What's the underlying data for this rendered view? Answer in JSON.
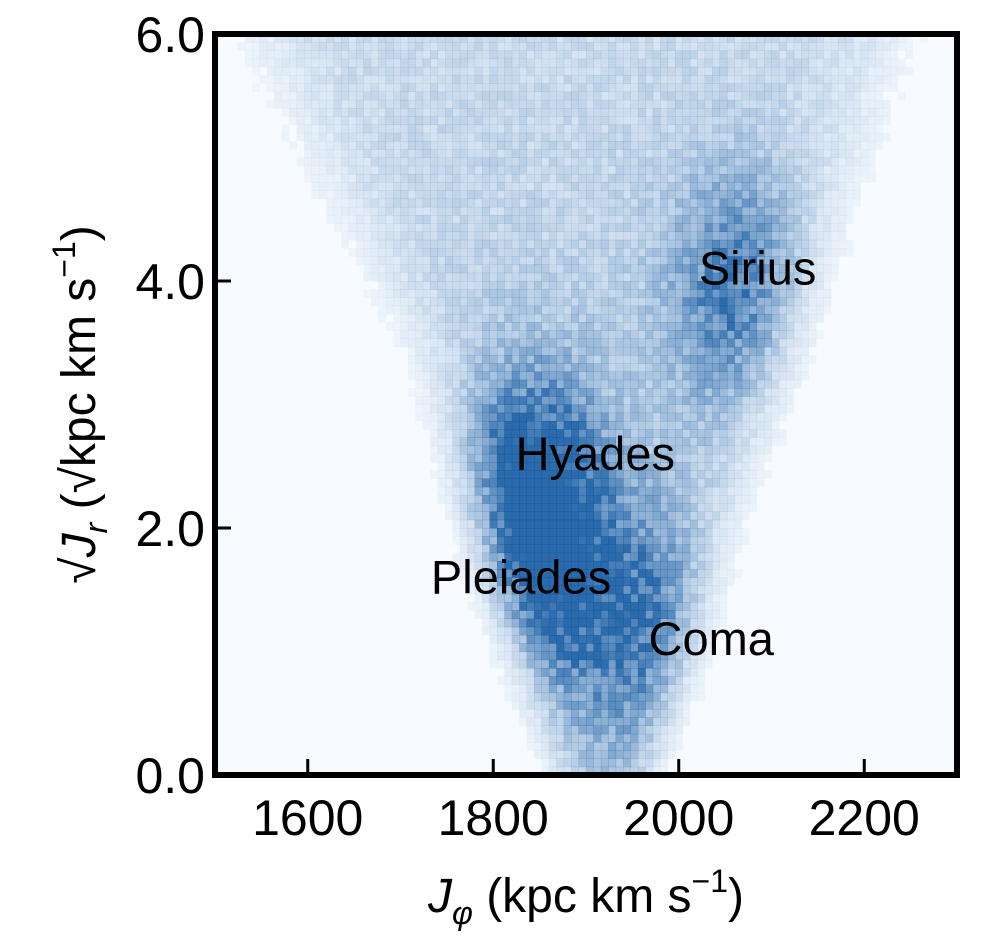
{
  "chart_data": {
    "type": "heatmap",
    "colormap": "Blues",
    "xlim": [
      1500,
      2300
    ],
    "ylim": [
      0,
      6
    ],
    "xticks": [
      1600,
      1800,
      2000,
      2200
    ],
    "yticks": [
      0,
      2,
      4,
      6
    ],
    "xtick_labels": [
      "1600",
      "1800",
      "2000",
      "2200"
    ],
    "ytick_labels": [
      "0.0",
      "2.0",
      "4.0",
      "6.0"
    ],
    "xlabel": {
      "symbol": "J",
      "sub": "φ",
      "unit_pre": " (kpc km s",
      "unit_sup": "−1",
      "unit_post": ")"
    },
    "ylabel": {
      "symbol": "√J",
      "sub": "r",
      "unit_pre": " (√kpc km s",
      "unit_sup": "−1",
      "unit_post": ")"
    },
    "grid": false,
    "annotations": [
      {
        "text": "Sirius",
        "x": 2085,
        "y": 4.1
      },
      {
        "text": "Hyades",
        "x": 1910,
        "y": 2.6
      },
      {
        "text": "Pleiades",
        "x": 1830,
        "y": 1.6
      },
      {
        "text": "Coma",
        "x": 2035,
        "y": 1.1
      }
    ],
    "density_model": {
      "band_left_edge": [
        [
          1560,
          6.0
        ],
        [
          1740,
          3.4
        ],
        [
          1880,
          0.0
        ]
      ],
      "band_right_edge": [
        [
          2220,
          6.0
        ],
        [
          2080,
          3.0
        ],
        [
          1960,
          0.0
        ]
      ],
      "overdensities": [
        {
          "name": "Sirius",
          "x": 2065,
          "y": 3.9,
          "strength": 0.55
        },
        {
          "name": "Hyades",
          "x": 1840,
          "y": 2.3,
          "strength": 0.85
        },
        {
          "name": "Pleiades",
          "x": 1850,
          "y": 1.6,
          "strength": 0.6
        },
        {
          "name": "Coma",
          "x": 1960,
          "y": 1.2,
          "strength": 0.5
        }
      ]
    }
  }
}
